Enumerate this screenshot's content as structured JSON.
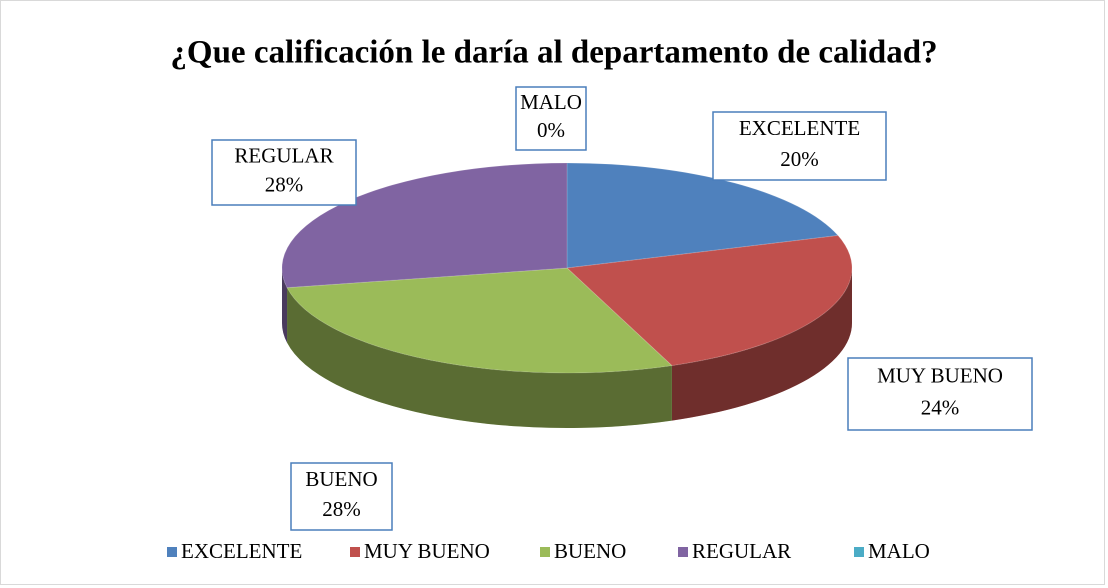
{
  "chart_data": {
    "type": "pie",
    "title": "¿Que calificación le daría al departamento de calidad?",
    "categories": [
      "EXCELENTE",
      "MUY BUENO",
      "BUENO",
      "REGULAR",
      "MALO"
    ],
    "values": [
      20,
      24,
      28,
      28,
      0
    ],
    "value_labels": [
      "20%",
      "24%",
      "28%",
      "28%",
      "0%"
    ],
    "colors": [
      "#4f81bd",
      "#c0504d",
      "#9bbb59",
      "#8064a2",
      "#4bacc6"
    ],
    "legend": "bottom"
  }
}
